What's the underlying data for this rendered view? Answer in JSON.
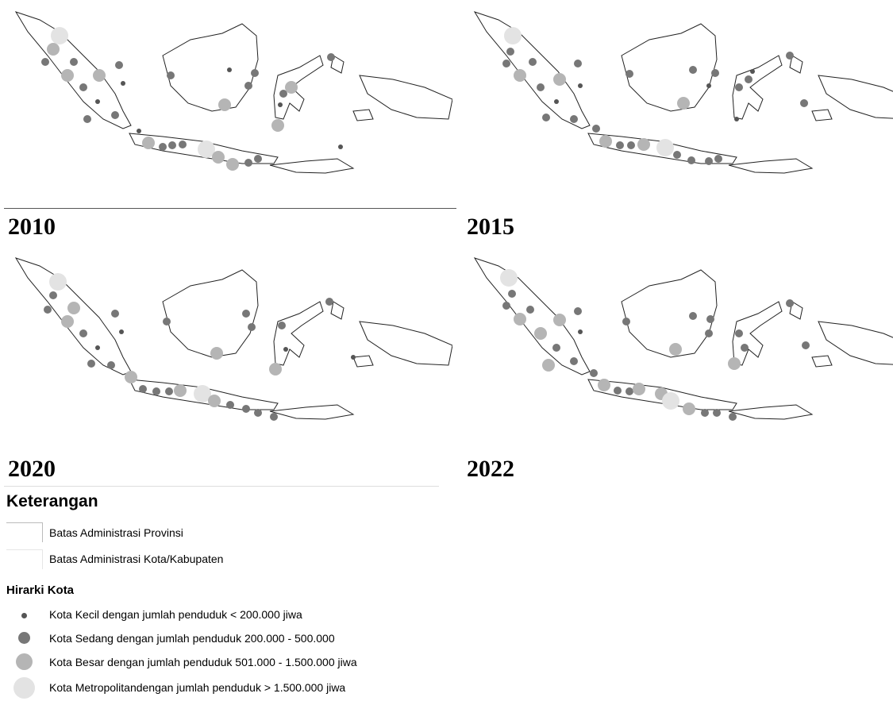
{
  "panels": [
    {
      "year": "2010",
      "title": "",
      "cities": [
        [
          70,
          45,
          "metro"
        ],
        [
          62,
          62,
          "besar"
        ],
        [
          52,
          78,
          "sedang"
        ],
        [
          80,
          95,
          "besar"
        ],
        [
          88,
          78,
          "sedang"
        ],
        [
          100,
          110,
          "sedang"
        ],
        [
          118,
          128,
          "kecil"
        ],
        [
          105,
          150,
          "sedang"
        ],
        [
          120,
          95,
          "besar"
        ],
        [
          145,
          82,
          "sedang"
        ],
        [
          150,
          105,
          "kecil"
        ],
        [
          140,
          145,
          "sedang"
        ],
        [
          170,
          165,
          "kecil"
        ],
        [
          182,
          180,
          "besar"
        ],
        [
          200,
          185,
          "sedang"
        ],
        [
          212,
          183,
          "sedang"
        ],
        [
          225,
          182,
          "sedang"
        ],
        [
          255,
          188,
          "metro"
        ],
        [
          270,
          198,
          "besar"
        ],
        [
          288,
          207,
          "besar"
        ],
        [
          308,
          205,
          "sedang"
        ],
        [
          320,
          200,
          "sedang"
        ],
        [
          210,
          95,
          "sedang"
        ],
        [
          278,
          132,
          "besar"
        ],
        [
          284,
          88,
          "kecil"
        ],
        [
          316,
          92,
          "sedang"
        ],
        [
          308,
          108,
          "sedang"
        ],
        [
          352,
          118,
          "sedang"
        ],
        [
          345,
          158,
          "besar"
        ],
        [
          348,
          132,
          "kecil"
        ],
        [
          362,
          110,
          "besar"
        ],
        [
          412,
          72,
          "sedang"
        ],
        [
          424,
          185,
          "kecil"
        ]
      ]
    },
    {
      "year": "2015",
      "title": "",
      "cities": [
        [
          63,
          45,
          "metro"
        ],
        [
          60,
          65,
          "sedang"
        ],
        [
          55,
          80,
          "sedang"
        ],
        [
          72,
          95,
          "besar"
        ],
        [
          88,
          78,
          "sedang"
        ],
        [
          98,
          110,
          "sedang"
        ],
        [
          118,
          128,
          "kecil"
        ],
        [
          105,
          148,
          "sedang"
        ],
        [
          122,
          100,
          "besar"
        ],
        [
          145,
          80,
          "sedang"
        ],
        [
          148,
          108,
          "kecil"
        ],
        [
          140,
          150,
          "sedang"
        ],
        [
          168,
          162,
          "sedang"
        ],
        [
          180,
          178,
          "besar"
        ],
        [
          198,
          183,
          "sedang"
        ],
        [
          212,
          183,
          "sedang"
        ],
        [
          228,
          182,
          "besar"
        ],
        [
          255,
          186,
          "metro"
        ],
        [
          270,
          195,
          "sedang"
        ],
        [
          288,
          202,
          "sedang"
        ],
        [
          310,
          203,
          "sedang"
        ],
        [
          322,
          200,
          "sedang"
        ],
        [
          210,
          93,
          "sedang"
        ],
        [
          278,
          130,
          "besar"
        ],
        [
          290,
          88,
          "sedang"
        ],
        [
          318,
          92,
          "sedang"
        ],
        [
          310,
          108,
          "kecil"
        ],
        [
          348,
          110,
          "sedang"
        ],
        [
          345,
          150,
          "kecil"
        ],
        [
          360,
          100,
          "sedang"
        ],
        [
          365,
          90,
          "kecil"
        ],
        [
          412,
          70,
          "sedang"
        ],
        [
          430,
          130,
          "sedang"
        ]
      ]
    },
    {
      "year": "2020",
      "title": "",
      "cities": [
        [
          68,
          45,
          "metro"
        ],
        [
          62,
          62,
          "sedang"
        ],
        [
          55,
          80,
          "sedang"
        ],
        [
          80,
          95,
          "besar"
        ],
        [
          88,
          78,
          "besar"
        ],
        [
          100,
          110,
          "sedang"
        ],
        [
          118,
          128,
          "kecil"
        ],
        [
          110,
          148,
          "sedang"
        ],
        [
          140,
          85,
          "sedang"
        ],
        [
          148,
          108,
          "kecil"
        ],
        [
          135,
          150,
          "sedang"
        ],
        [
          160,
          165,
          "besar"
        ],
        [
          175,
          180,
          "sedang"
        ],
        [
          192,
          183,
          "sedang"
        ],
        [
          208,
          183,
          "sedang"
        ],
        [
          222,
          182,
          "besar"
        ],
        [
          250,
          186,
          "metro"
        ],
        [
          265,
          195,
          "besar"
        ],
        [
          285,
          200,
          "sedang"
        ],
        [
          305,
          205,
          "sedang"
        ],
        [
          320,
          210,
          "sedang"
        ],
        [
          340,
          215,
          "sedang"
        ],
        [
          205,
          95,
          "sedang"
        ],
        [
          268,
          135,
          "besar"
        ],
        [
          305,
          85,
          "sedang"
        ],
        [
          312,
          102,
          "sedang"
        ],
        [
          350,
          100,
          "sedang"
        ],
        [
          342,
          155,
          "besar"
        ],
        [
          355,
          130,
          "kecil"
        ],
        [
          410,
          70,
          "sedang"
        ],
        [
          440,
          140,
          "kecil"
        ]
      ]
    },
    {
      "year": "2022",
      "title": "",
      "cities": [
        [
          58,
          40,
          "metro"
        ],
        [
          62,
          60,
          "sedang"
        ],
        [
          55,
          75,
          "sedang"
        ],
        [
          72,
          92,
          "besar"
        ],
        [
          85,
          80,
          "sedang"
        ],
        [
          98,
          110,
          "besar"
        ],
        [
          118,
          128,
          "sedang"
        ],
        [
          108,
          150,
          "besar"
        ],
        [
          122,
          93,
          "besar"
        ],
        [
          145,
          82,
          "sedang"
        ],
        [
          148,
          108,
          "kecil"
        ],
        [
          140,
          145,
          "sedang"
        ],
        [
          165,
          160,
          "sedang"
        ],
        [
          178,
          175,
          "besar"
        ],
        [
          195,
          182,
          "sedang"
        ],
        [
          210,
          183,
          "sedang"
        ],
        [
          222,
          180,
          "besar"
        ],
        [
          250,
          186,
          "besar"
        ],
        [
          262,
          195,
          "metro"
        ],
        [
          285,
          205,
          "besar"
        ],
        [
          305,
          210,
          "sedang"
        ],
        [
          320,
          210,
          "sedang"
        ],
        [
          340,
          215,
          "sedang"
        ],
        [
          206,
          95,
          "sedang"
        ],
        [
          268,
          130,
          "besar"
        ],
        [
          290,
          88,
          "sedang"
        ],
        [
          312,
          92,
          "sedang"
        ],
        [
          310,
          110,
          "sedang"
        ],
        [
          348,
          110,
          "sedang"
        ],
        [
          342,
          148,
          "besar"
        ],
        [
          355,
          128,
          "sedang"
        ],
        [
          412,
          72,
          "sedang"
        ],
        [
          432,
          125,
          "sedang"
        ]
      ]
    }
  ],
  "legend": {
    "title": "Keterangan",
    "boundaries": [
      {
        "label": "Batas Administrasi Provinsi"
      },
      {
        "label": "Batas Administrasi Kota/Kabupaten"
      }
    ],
    "hierarchy_title": "Hirarki Kota",
    "hierarchy": [
      {
        "key": "kecil",
        "label": "Kota Kecil dengan jumlah penduduk < 200.000 jiwa",
        "color": "#555555"
      },
      {
        "key": "sedang",
        "label": "Kota Sedang dengan jumlah penduduk 200.000 - 500.000",
        "color": "#777777"
      },
      {
        "key": "besar",
        "label": "Kota Besar dengan jumlah penduduk 501.000 - 1.500.000 jiwa",
        "color": "#b5b5b5"
      },
      {
        "key": "metro",
        "label": "Kota Metropolitandengan jumlah penduduk > 1.500.000 jiwa",
        "color": "#e3e3e3"
      }
    ]
  }
}
